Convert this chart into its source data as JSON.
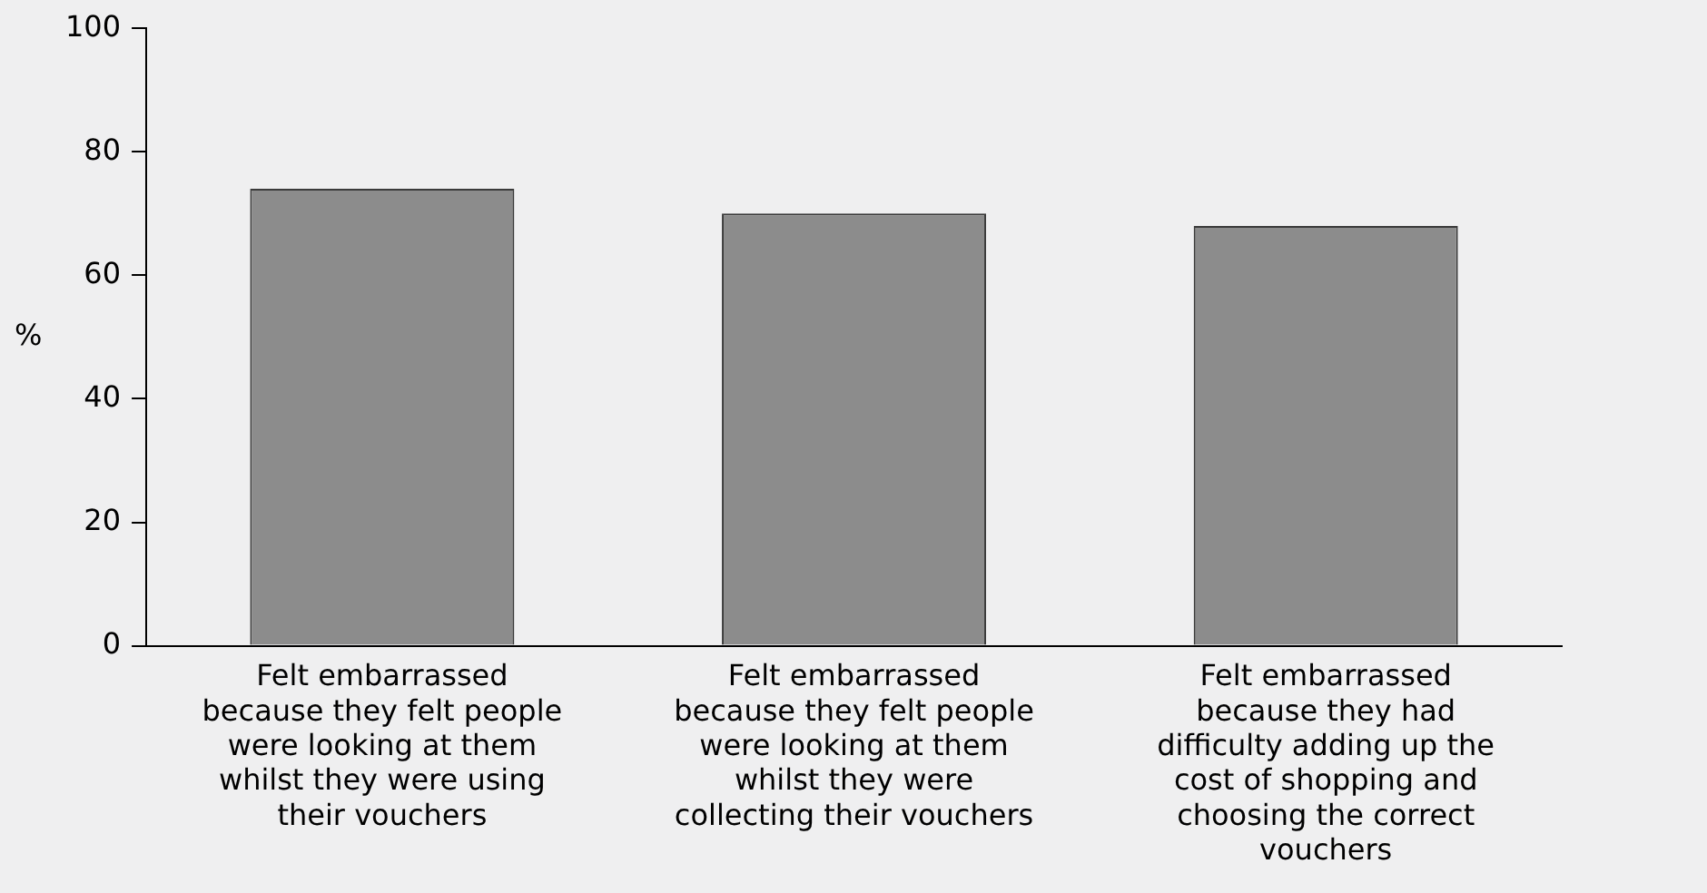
{
  "chart_data": {
    "type": "bar",
    "ylabel": "%",
    "categories": [
      "Felt embarrassed because they felt people were looking at them whilst they were using their vouchers",
      "Felt embarrassed because they felt people were looking at them whilst they were collecting their vouchers",
      "Felt embarrassed because they had difficulty adding up the cost of shopping and choosing the correct vouchers"
    ],
    "values": [
      74,
      70,
      68
    ],
    "color": "#8c8c8c",
    "ylim": [
      0,
      100
    ],
    "yticks": [
      0,
      20,
      40,
      60,
      80,
      100
    ],
    "grid": false,
    "legend": false
  }
}
